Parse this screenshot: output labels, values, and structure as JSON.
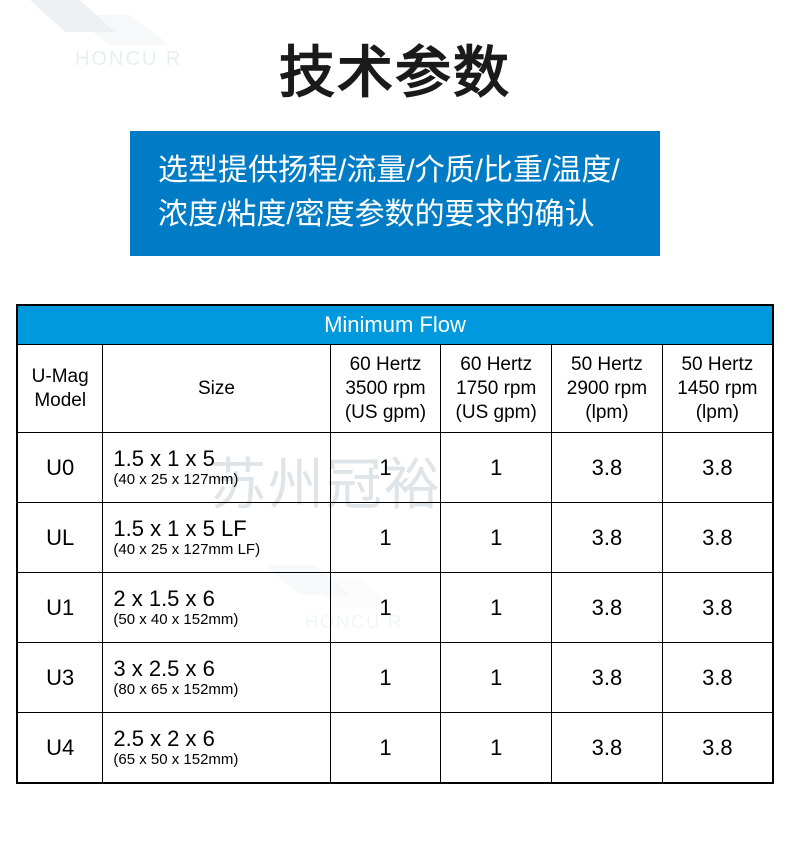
{
  "colors": {
    "header_bg": "#0099dd",
    "blue_box_bg": "#007cc7",
    "blue_box_text": "#ffffff",
    "title_text": "#1a1a1a",
    "table_header_text": "#ffffff",
    "border": "#000000",
    "watermark": "#b8c4cc"
  },
  "title": "技术参数",
  "subtitle": "选型提供扬程/流量/介质/比重/温度/浓度/粘度/密度参数的要求的确认",
  "watermark_brand": "HONCU",
  "watermark_center": "苏州冠裕",
  "table": {
    "banner": "Minimum Flow",
    "columns": [
      {
        "l1": "U-Mag",
        "l2": "Model",
        "l3": ""
      },
      {
        "l1": "Size",
        "l2": "",
        "l3": ""
      },
      {
        "l1": "60 Hertz",
        "l2": "3500 rpm",
        "l3": "(US gpm)"
      },
      {
        "l1": "60 Hertz",
        "l2": "1750 rpm",
        "l3": "(US gpm)"
      },
      {
        "l1": "50 Hertz",
        "l2": "2900 rpm",
        "l3": "(lpm)"
      },
      {
        "l1": "50 Hertz",
        "l2": "1450 rpm",
        "l3": "(lpm)"
      }
    ],
    "rows": [
      {
        "model": "U0",
        "size_main": "1.5 x 1 x 5",
        "size_sub": "(40 x 25 x 127mm)",
        "v": [
          "1",
          "1",
          "3.8",
          "3.8"
        ]
      },
      {
        "model": "UL",
        "size_main": "1.5 x 1 x 5 LF",
        "size_sub": "(40 x 25 x 127mm LF)",
        "v": [
          "1",
          "1",
          "3.8",
          "3.8"
        ]
      },
      {
        "model": "U1",
        "size_main": "2 x 1.5 x 6",
        "size_sub": "(50 x 40 x 152mm)",
        "v": [
          "1",
          "1",
          "3.8",
          "3.8"
        ]
      },
      {
        "model": "U3",
        "size_main": "3 x 2.5 x 6",
        "size_sub": "(80 x 65 x 152mm)",
        "v": [
          "1",
          "1",
          "3.8",
          "3.8"
        ]
      },
      {
        "model": "U4",
        "size_main": "2.5 x 2 x 6",
        "size_sub": "(65 x 50 x 152mm)",
        "v": [
          "1",
          "1",
          "3.8",
          "3.8"
        ]
      }
    ]
  }
}
